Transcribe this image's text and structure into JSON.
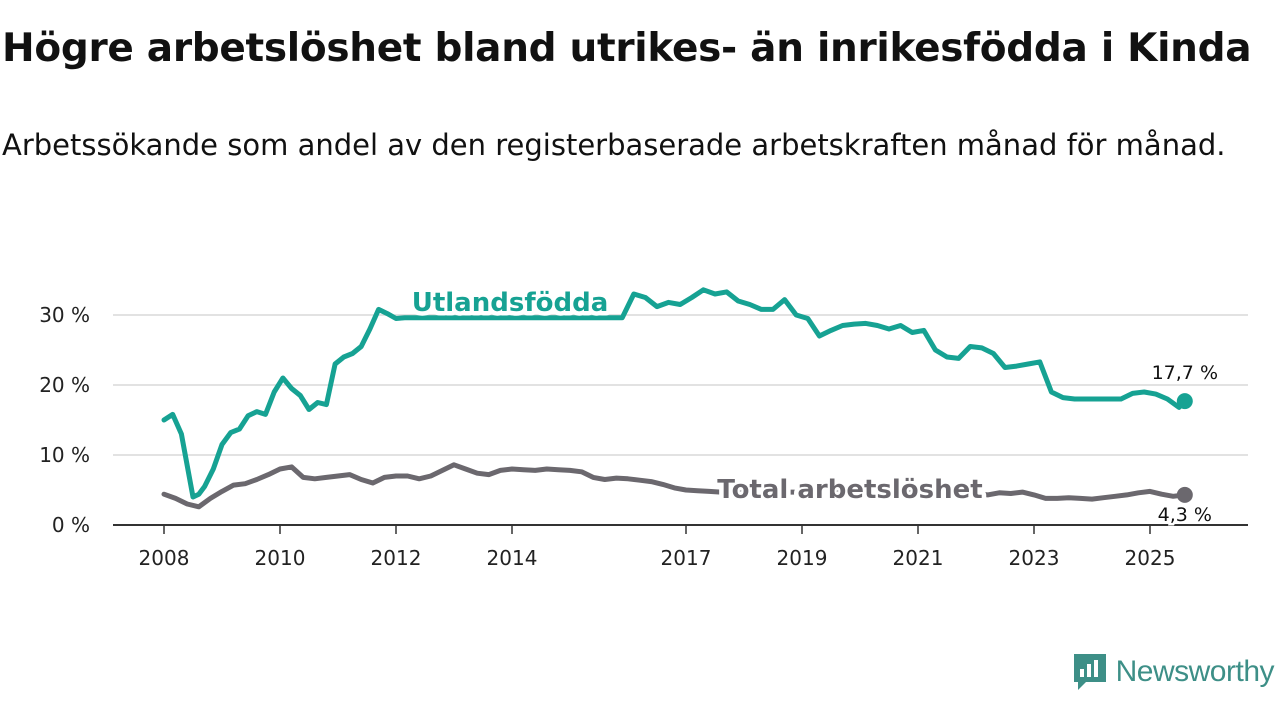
{
  "header": {
    "title": "Högre arbetslöshet bland utrikes- än inrikesfödda i Kinda",
    "subtitle": "Arbetssökande som andel av den registerbaserade arbetskraften månad för månad."
  },
  "brand": {
    "name": "Newsworthy",
    "color": "#3d8f87"
  },
  "chart_data": {
    "type": "line",
    "title": "Högre arbetslöshet bland utrikes- än inrikesfödda i Kinda",
    "subtitle": "Arbetssökande som andel av den registerbaserade arbetskraften månad för månad.",
    "xlabel": "",
    "ylabel": "",
    "xlim": [
      2008,
      2026
    ],
    "ylim": [
      0,
      33
    ],
    "grid": true,
    "y_ticks": [
      {
        "value": 0,
        "label": "0 %"
      },
      {
        "value": 10,
        "label": "10 %"
      },
      {
        "value": 20,
        "label": "20 %"
      },
      {
        "value": 30,
        "label": "30 %"
      }
    ],
    "x_ticks": [
      {
        "value": 2008,
        "label": "2008"
      },
      {
        "value": 2010,
        "label": "2010"
      },
      {
        "value": 2012,
        "label": "2012"
      },
      {
        "value": 2014,
        "label": "2014"
      },
      {
        "value": 2017,
        "label": "2017"
      },
      {
        "value": 2019,
        "label": "2019"
      },
      {
        "value": 2021,
        "label": "2021"
      },
      {
        "value": 2023,
        "label": "2023"
      },
      {
        "value": 2025,
        "label": "2025"
      }
    ],
    "series": [
      {
        "name": "Utlandsfödda",
        "color": "#16a293",
        "label": "Utlandsfödda",
        "end_label": "17,7 %",
        "x": [
          2008.0,
          2008.15,
          2008.3,
          2008.5,
          2008.6,
          2008.7,
          2008.85,
          2009.0,
          2009.15,
          2009.3,
          2009.45,
          2009.6,
          2009.75,
          2009.9,
          2010.05,
          2010.2,
          2010.35,
          2010.5,
          2010.65,
          2010.8,
          2010.95,
          2011.1,
          2011.25,
          2011.4,
          2011.55,
          2011.7,
          2011.85,
          2012.0,
          2012.15,
          2012.3,
          2012.5,
          2012.7,
          2012.9,
          2013.1,
          2013.3,
          2013.5,
          2013.7,
          2013.9,
          2014.1,
          2014.3,
          2014.5,
          2014.7,
          2014.9,
          2015.1,
          2015.3,
          2015.5,
          2015.7,
          2015.9,
          2016.1,
          2016.3,
          2016.5,
          2016.7,
          2016.9,
          2017.1,
          2017.3,
          2017.5,
          2017.7,
          2017.9,
          2018.1,
          2018.3,
          2018.5,
          2018.7,
          2018.9,
          2019.1,
          2019.3,
          2019.5,
          2019.7,
          2019.9,
          2020.1,
          2020.3,
          2020.5,
          2020.7,
          2020.9,
          2021.1,
          2021.3,
          2021.5,
          2021.7,
          2021.9,
          2022.1,
          2022.3,
          2022.5,
          2022.7,
          2022.9,
          2023.1,
          2023.3,
          2023.5,
          2023.7,
          2023.9,
          2024.1,
          2024.3,
          2024.5,
          2024.7,
          2024.9,
          2025.1,
          2025.3,
          2025.5,
          2025.6
        ],
        "y": [
          15.0,
          15.8,
          13.0,
          4.0,
          4.4,
          5.5,
          8.0,
          11.5,
          13.2,
          13.7,
          15.6,
          16.2,
          15.8,
          19.0,
          21.0,
          19.5,
          18.5,
          16.5,
          17.5,
          17.2,
          23.0,
          24.0,
          24.5,
          25.5,
          28.0,
          30.8,
          30.2,
          29.5,
          29.6,
          29.6,
          29.6,
          29.6,
          29.6,
          29.6,
          29.6,
          29.6,
          29.6,
          29.6,
          29.6,
          29.6,
          29.6,
          29.6,
          29.6,
          29.6,
          29.6,
          29.6,
          29.6,
          29.6,
          33.0,
          32.5,
          31.2,
          31.8,
          31.5,
          32.5,
          33.6,
          33.0,
          33.3,
          32.0,
          31.5,
          30.8,
          30.8,
          32.2,
          30.0,
          29.5,
          27.0,
          27.8,
          28.5,
          28.7,
          28.8,
          28.5,
          28.0,
          28.5,
          27.5,
          27.8,
          25.0,
          24.0,
          23.8,
          25.5,
          25.3,
          24.5,
          22.5,
          22.7,
          23.0,
          23.3,
          19.0,
          18.2,
          18.0,
          18.0,
          18.0,
          18.0,
          18.0,
          18.8,
          19.0,
          18.7,
          18.0,
          16.8,
          17.7
        ]
      },
      {
        "name": "Total arbetslöshet",
        "color": "#6b686e",
        "label": "Total arbetslöshet",
        "end_label": "4,3 %",
        "x": [
          2008.0,
          2008.2,
          2008.4,
          2008.6,
          2008.8,
          2009.0,
          2009.2,
          2009.4,
          2009.6,
          2009.8,
          2010.0,
          2010.2,
          2010.4,
          2010.6,
          2010.8,
          2011.0,
          2011.2,
          2011.4,
          2011.6,
          2011.8,
          2012.0,
          2012.2,
          2012.4,
          2012.6,
          2012.8,
          2013.0,
          2013.2,
          2013.4,
          2013.6,
          2013.8,
          2014.0,
          2014.2,
          2014.4,
          2014.6,
          2014.8,
          2015.0,
          2015.2,
          2015.4,
          2015.6,
          2015.8,
          2016.0,
          2016.2,
          2016.4,
          2016.6,
          2016.8,
          2017.0,
          2017.2,
          2017.4,
          2017.6,
          2017.8,
          2018.0,
          2018.2,
          2018.4,
          2018.6,
          2018.8,
          2019.0,
          2019.2,
          2019.4,
          2019.6,
          2019.8,
          2020.0,
          2020.2,
          2020.4,
          2020.6,
          2020.8,
          2021.0,
          2021.2,
          2021.4,
          2021.6,
          2021.8,
          2022.0,
          2022.2,
          2022.4,
          2022.6,
          2022.8,
          2023.0,
          2023.2,
          2023.4,
          2023.6,
          2023.8,
          2024.0,
          2024.2,
          2024.4,
          2024.6,
          2024.8,
          2025.0,
          2025.2,
          2025.4,
          2025.6
        ],
        "y": [
          4.4,
          3.8,
          3.0,
          2.6,
          3.8,
          4.8,
          5.7,
          5.9,
          6.5,
          7.2,
          8.0,
          8.3,
          6.8,
          6.6,
          6.8,
          7.0,
          7.2,
          6.5,
          6.0,
          6.8,
          7.0,
          7.0,
          6.6,
          7.0,
          7.8,
          8.6,
          8.0,
          7.4,
          7.2,
          7.8,
          8.0,
          7.9,
          7.8,
          8.0,
          7.9,
          7.8,
          7.6,
          6.8,
          6.5,
          6.7,
          6.6,
          6.4,
          6.2,
          5.8,
          5.3,
          5.0,
          4.9,
          4.8,
          4.7,
          4.7,
          4.7,
          4.7,
          4.7,
          4.7,
          4.7,
          4.7,
          4.7,
          4.7,
          4.7,
          4.7,
          4.7,
          4.7,
          4.7,
          4.7,
          4.7,
          4.7,
          4.7,
          4.7,
          4.7,
          4.7,
          4.5,
          4.3,
          4.6,
          4.5,
          4.7,
          4.3,
          3.8,
          3.8,
          3.9,
          3.8,
          3.7,
          3.9,
          4.1,
          4.3,
          4.6,
          4.8,
          4.4,
          4.1,
          4.3
        ]
      }
    ]
  }
}
